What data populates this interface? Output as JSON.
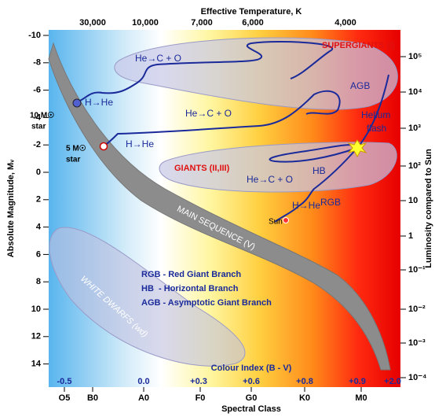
{
  "top_axis": {
    "title": "Effective Temperature, K",
    "ticks": [
      "30,000",
      "10,000",
      "7,000",
      "6,000",
      "4,000"
    ]
  },
  "left_axis": {
    "title": "Absolute Magnitude, Mᵥ",
    "ticks": [
      "-10",
      "-8",
      "-6",
      "-4",
      "-2",
      "0",
      "2",
      "4",
      "6",
      "8",
      "10",
      "12",
      "14"
    ]
  },
  "right_axis": {
    "title": "Luminosity compared to Sun",
    "ticks": [
      "10⁵",
      "10⁴",
      "10³",
      "10²",
      "10",
      "1",
      "10⁻¹",
      "10⁻²",
      "10⁻³",
      "10⁻⁴"
    ]
  },
  "bottom_axis": {
    "title": "Spectral Class",
    "ticks": [
      "O5",
      "B0",
      "A0",
      "F0",
      "G0",
      "K0",
      "M0"
    ]
  },
  "colour_index": {
    "title": "Colour Index (B - V)",
    "ticks": [
      "-0.5",
      "0.0",
      "+0.3",
      "+0.6",
      "+0.8",
      "+0.9",
      "+2.0"
    ]
  },
  "regions": {
    "supergiants": "SUPERGIANTS (I)",
    "giants": "GIANTS (II,III)",
    "main_sequence": "MAIN SEQUENCE (V)",
    "white_dwarfs": "WHITE DWARFS (wd)"
  },
  "annotations": {
    "he_c_o_1": "He→C + O",
    "he_c_o_2": "He→C + O",
    "he_c_o_3": "He→C + O",
    "h_he_1": "H→He",
    "h_he_2": "H→He",
    "h_he_3": "H→He",
    "agb": "AGB",
    "helium": "Helium",
    "flash": "flash",
    "hb": "HB",
    "rgb": "RGB",
    "sun": "Sun",
    "ten_msun": "10 M☉",
    "ten_star": "star",
    "five_msun": "5 M☉",
    "five_star": "star"
  },
  "legend": [
    "RGB - Red Giant Branch",
    "HB  - Horizontal Branch",
    "AGB - Asymptotic Giant Branch"
  ]
}
